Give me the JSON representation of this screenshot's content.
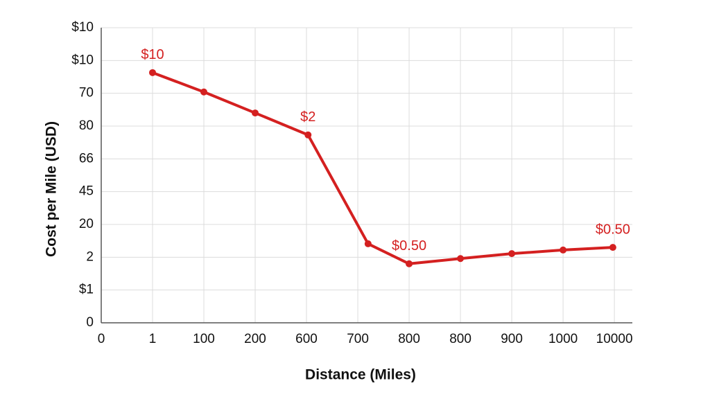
{
  "chart_data": {
    "type": "line",
    "xlabel": "Distance (Miles)",
    "ylabel": "Cost per Mile (USD)",
    "x": [
      1,
      2,
      3,
      4.03,
      5.2,
      6,
      7,
      8,
      9,
      9.97
    ],
    "values": [
      7.63,
      7.04,
      6.4,
      5.73,
      2.41,
      1.8,
      1.96,
      2.11,
      2.22,
      2.3
    ],
    "color": "#d42020",
    "xlim": [
      0,
      10.35
    ],
    "xticks": [
      0,
      {
        "value": 1,
        "label": "1"
      },
      {
        "value": 2,
        "label": "100"
      },
      {
        "value": 3,
        "label": "200"
      },
      {
        "value": 4,
        "label": "600"
      },
      {
        "value": 5,
        "label": "700"
      },
      {
        "value": 6,
        "label": "800"
      },
      {
        "value": 7,
        "label": "800"
      },
      {
        "value": 8,
        "label": "900"
      },
      {
        "value": 9,
        "label": "1000"
      },
      {
        "value": 10,
        "label": "10000"
      }
    ],
    "ylim": [
      0,
      9
    ],
    "yticks": [
      0,
      {
        "value": 1,
        "label": "$1"
      },
      2,
      {
        "value": 3,
        "label": "20"
      },
      {
        "value": 4,
        "label": "45"
      },
      {
        "value": 5,
        "label": "66"
      },
      {
        "value": 6,
        "label": "80"
      },
      {
        "value": 7,
        "label": "70"
      },
      {
        "value": 8,
        "label": "$10"
      },
      {
        "value": 9,
        "label": "$10"
      }
    ],
    "grid": true,
    "annotations": [
      {
        "text": "$10",
        "x": 1,
        "y": 7.63
      },
      {
        "text": "$2",
        "x": 4.03,
        "y": 5.73
      },
      {
        "text": "$0.50",
        "x": 6,
        "y": 1.8
      },
      {
        "text": "$0.50",
        "x": 9.97,
        "y": 2.3
      }
    ]
  }
}
